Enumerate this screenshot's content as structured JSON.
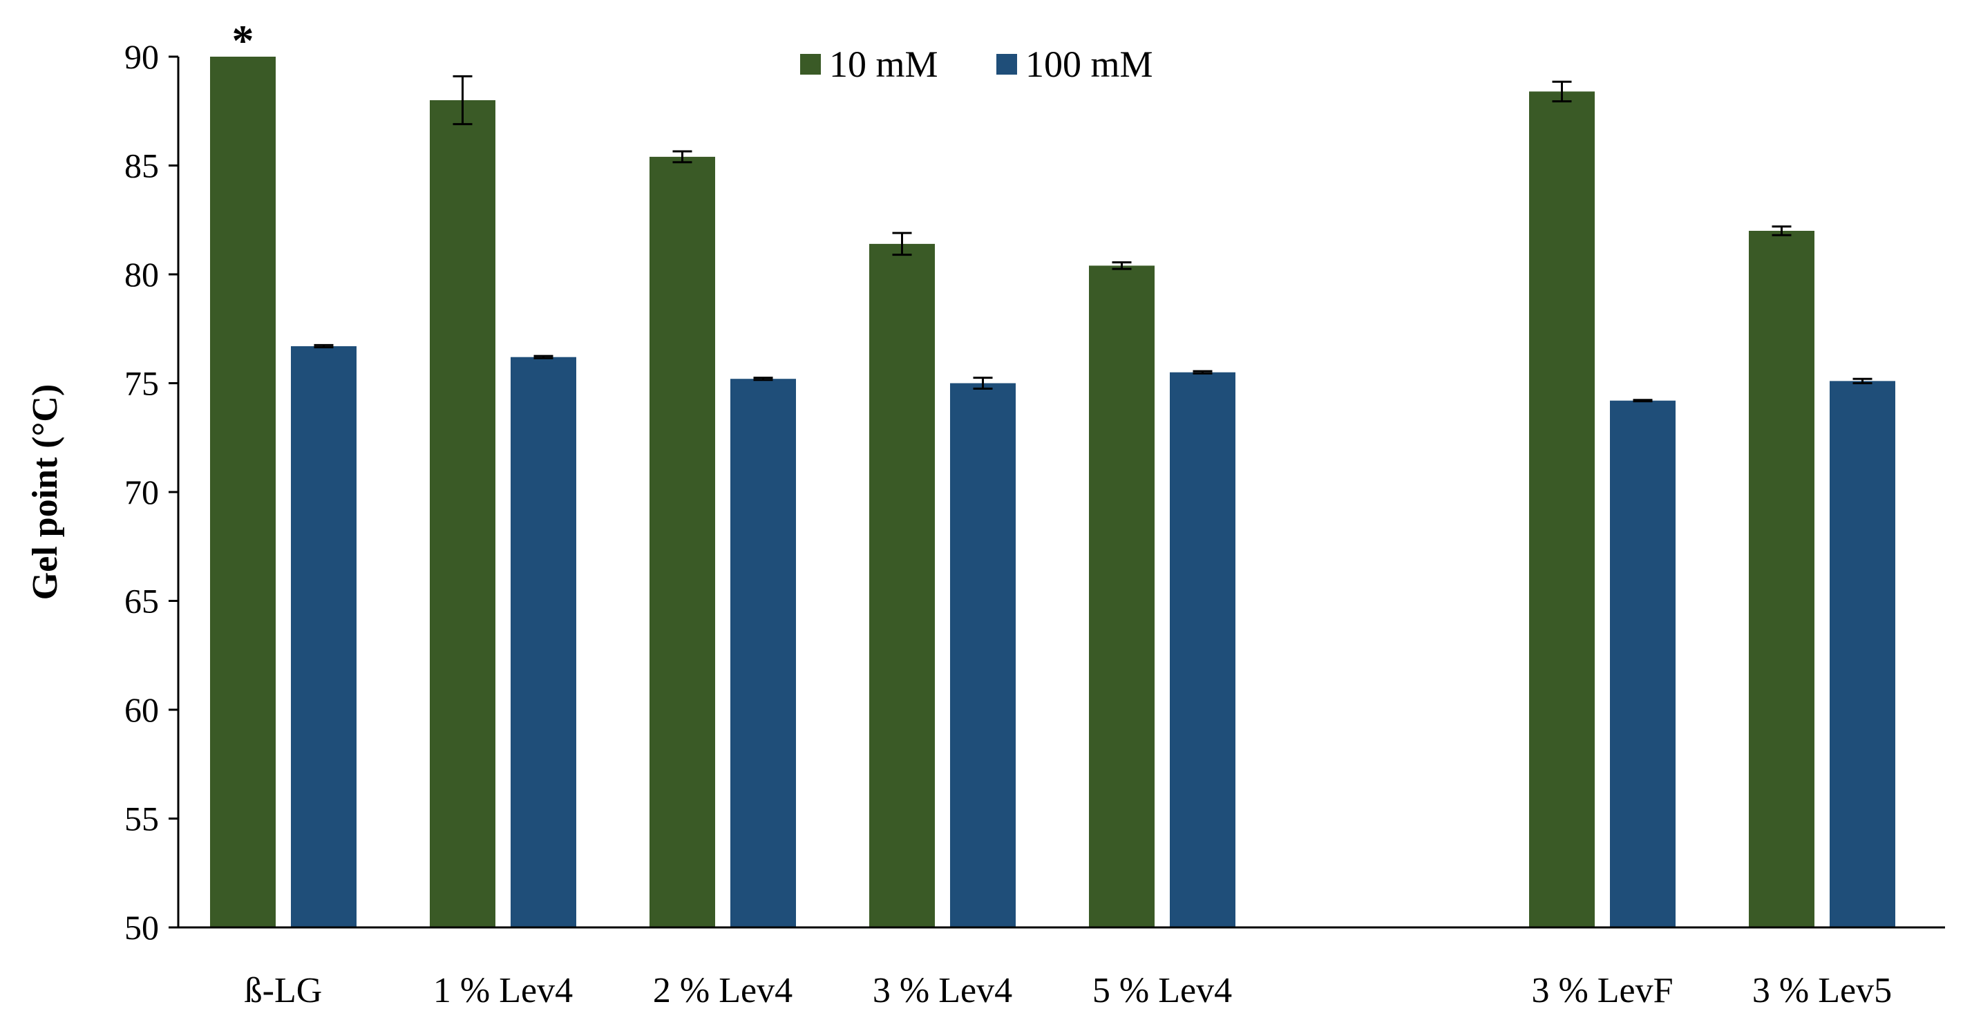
{
  "chart_data": {
    "type": "bar",
    "title": "",
    "xlabel": "",
    "ylabel": "Gel point (°C)",
    "ylim": [
      50,
      90
    ],
    "yticks": [
      50,
      55,
      60,
      65,
      70,
      75,
      80,
      85,
      90
    ],
    "grid": false,
    "legend": {
      "placement": "top-center",
      "entries": [
        "10 mM",
        "100 mM"
      ]
    },
    "categories": [
      "ß-LG",
      "1 % Lev4",
      "2 % Lev4",
      "3 % Lev4",
      "5 % Lev4",
      "3 % LevF",
      "3 % Lev5"
    ],
    "groups": [
      [
        "ß-LG",
        "1 % Lev4",
        "2 % Lev4",
        "3 % Lev4",
        "5 % Lev4"
      ],
      [
        "3 % LevF",
        "3 % Lev5"
      ]
    ],
    "series": [
      {
        "name": "10 mM",
        "color": "#3a5a26",
        "values": [
          90.0,
          88.0,
          85.4,
          81.4,
          80.4,
          88.4,
          82.0
        ],
        "errors": [
          0.0,
          1.1,
          0.25,
          0.5,
          0.15,
          0.45,
          0.2
        ]
      },
      {
        "name": "100 mM",
        "color": "#1f4e79",
        "values": [
          76.7,
          76.2,
          75.2,
          75.0,
          75.5,
          74.2,
          75.1
        ],
        "errors": [
          0.05,
          0.05,
          0.05,
          0.25,
          0.05,
          0.03,
          0.1
        ]
      }
    ],
    "annotations": [
      {
        "category": "ß-LG",
        "series": "10 mM",
        "text": "*"
      }
    ]
  }
}
